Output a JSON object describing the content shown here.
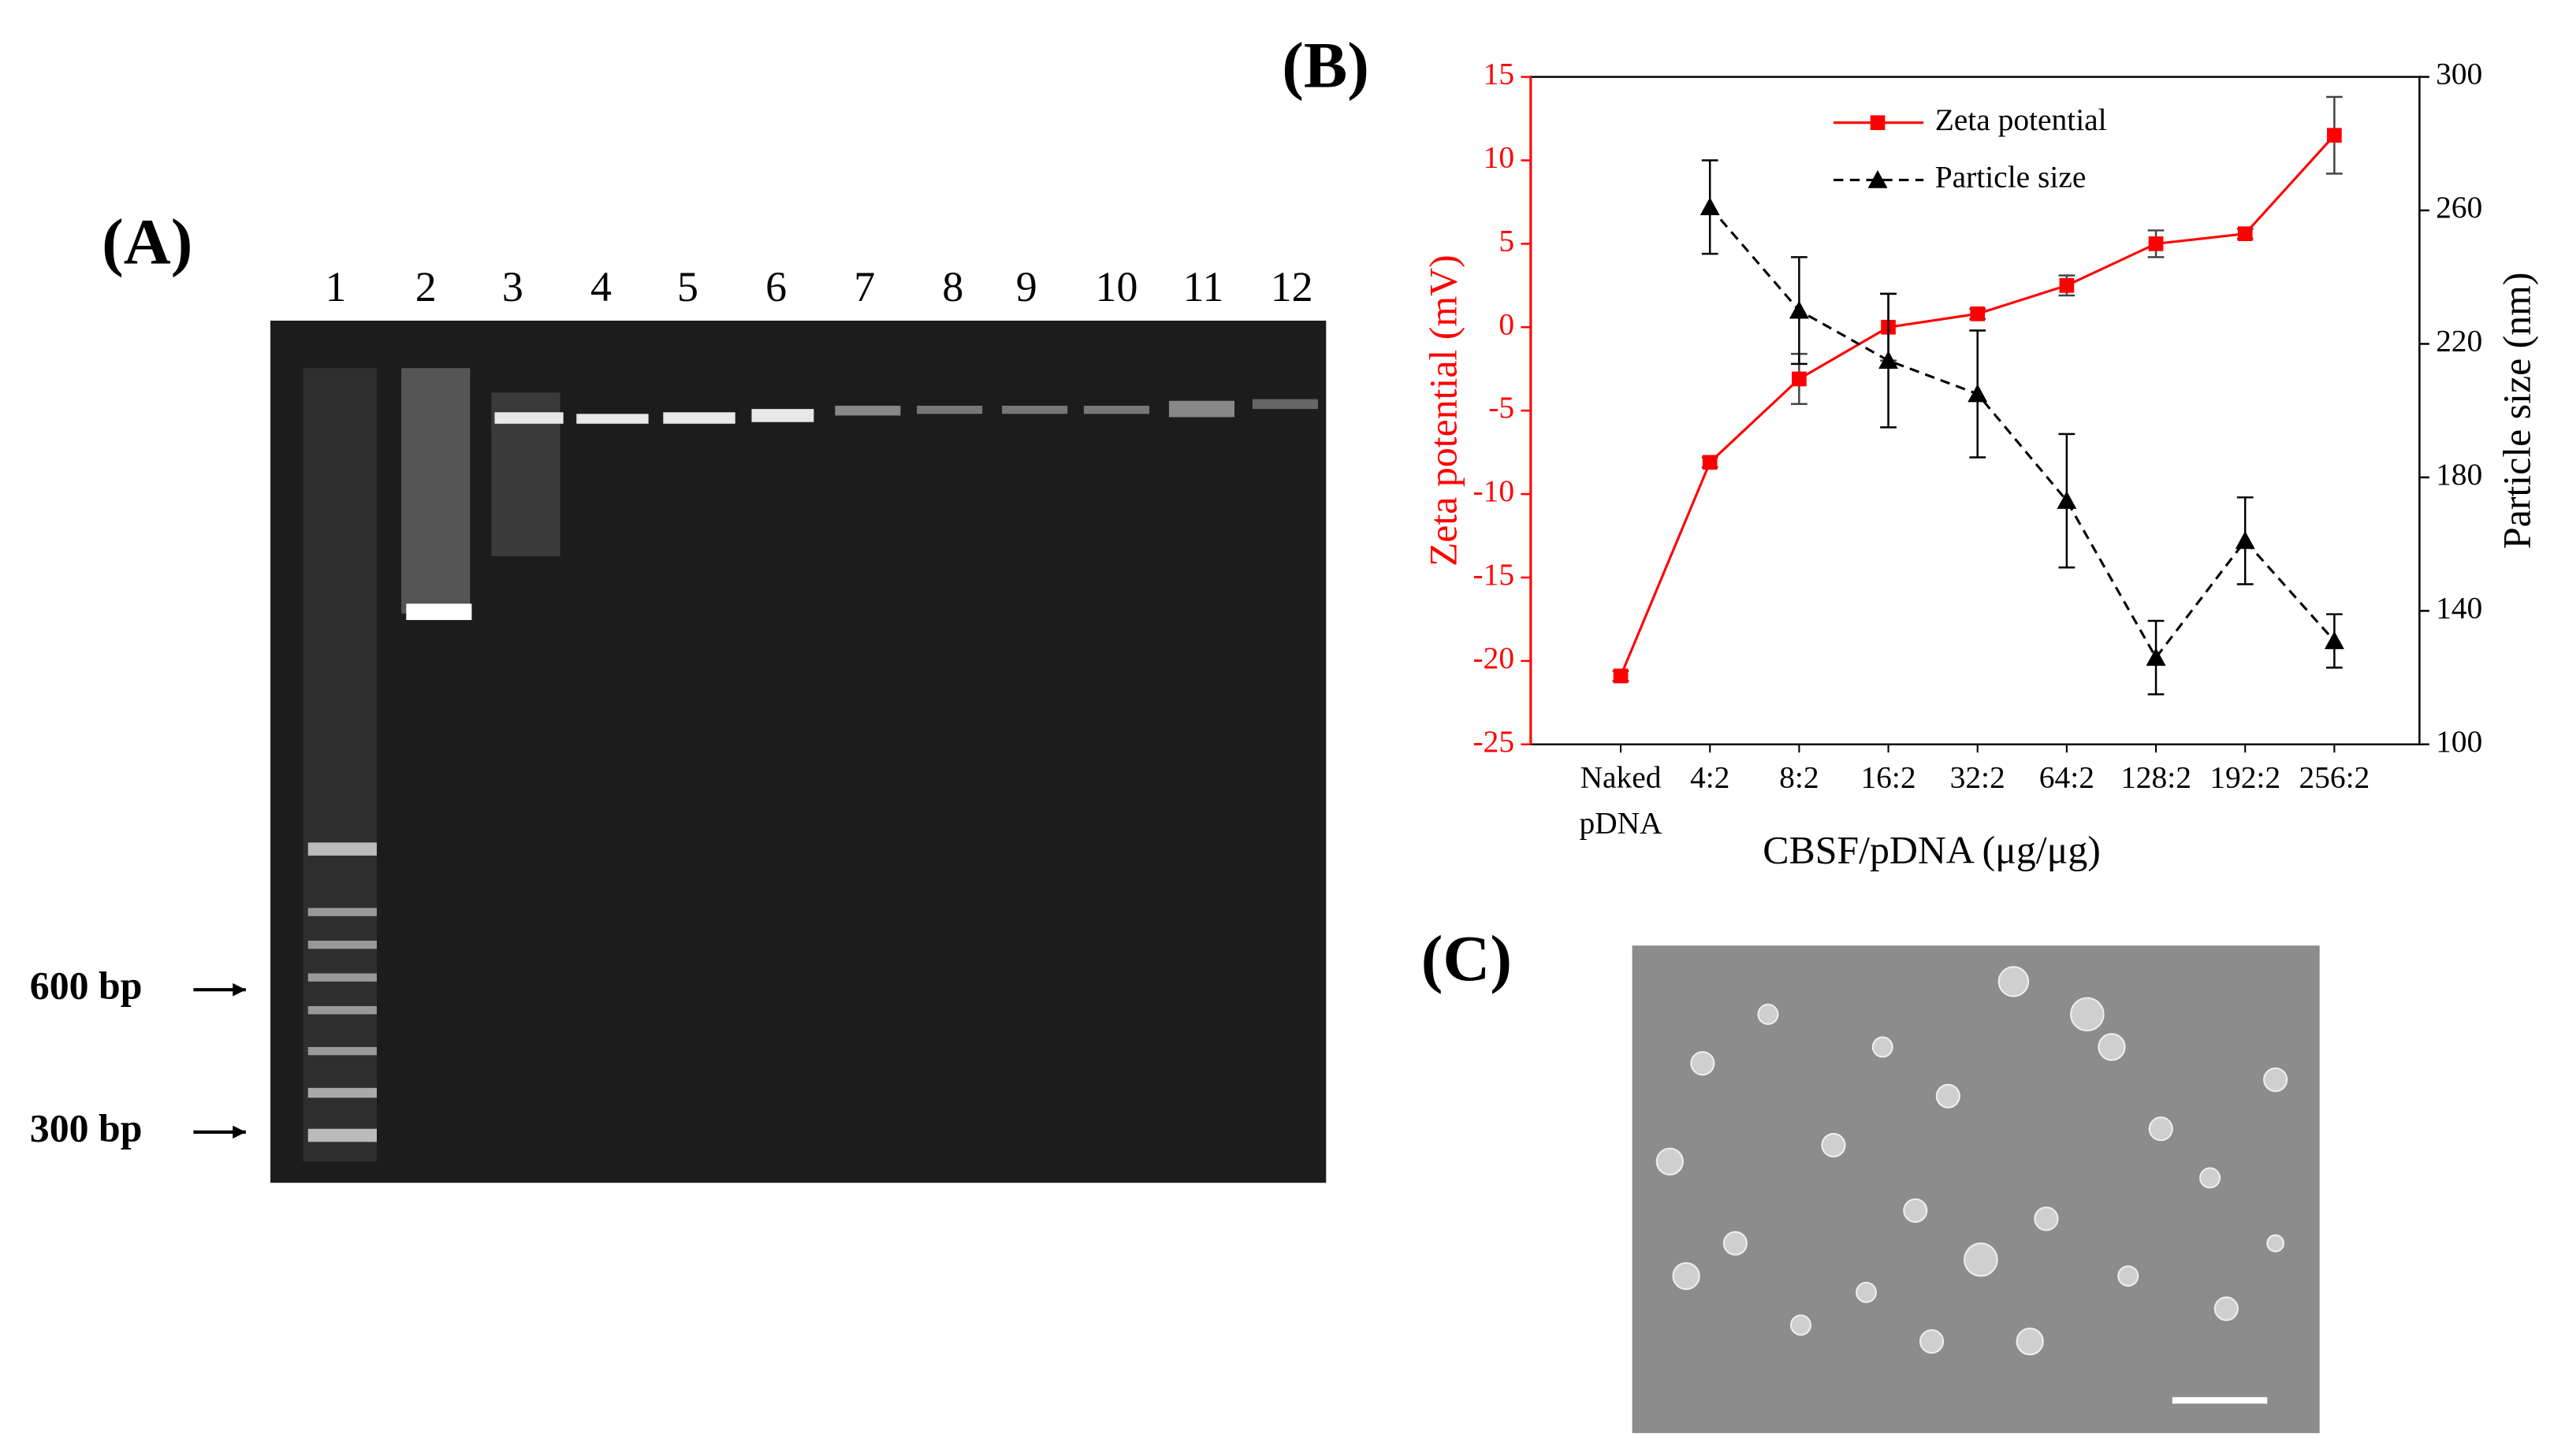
{
  "panels": {
    "A": {
      "label": "(A)",
      "lanes": [
        "1",
        "2",
        "3",
        "4",
        "5",
        "6",
        "7",
        "8",
        "9",
        "10",
        "11",
        "12"
      ],
      "markers": [
        "600 bp",
        "300 bp"
      ]
    },
    "B": {
      "label": "(B)"
    },
    "C": {
      "label": "(C)"
    }
  },
  "chart_data": {
    "type": "line",
    "xlabel": "CBSF/pDNA (μg/μg)",
    "ylabel": "Zeta potential (mV)",
    "y2label": "Particle size (nm)",
    "categories": [
      "Naked pDNA",
      "4:2",
      "8:2",
      "16:2",
      "32:2",
      "64:2",
      "128:2",
      "192:2",
      "256:2"
    ],
    "series": [
      {
        "name": "Zeta potential",
        "color": "#ff0000",
        "marker": "square",
        "dashed": false,
        "values": [
          -20.9,
          -8.1,
          -3.1,
          0.0,
          0.8,
          2.5,
          5.0,
          5.6,
          11.5
        ],
        "errors": [
          0.3,
          0.3,
          1.5,
          2.0,
          0.3,
          0.6,
          0.8,
          0.3,
          2.3
        ]
      },
      {
        "name": "Particle size",
        "color": "#000000",
        "marker": "triangle",
        "dashed": true,
        "axis": "y2",
        "values": [
          null,
          261,
          230,
          215,
          205,
          173,
          126,
          161,
          131
        ],
        "errors": [
          null,
          14,
          16,
          20,
          19,
          20,
          11,
          13,
          8
        ]
      }
    ],
    "ylim": [
      -25,
      15
    ],
    "yticks": [
      -25,
      -20,
      -15,
      -10,
      -5,
      0,
      5,
      10,
      15
    ],
    "y2lim": [
      100,
      300
    ],
    "y2ticks": [
      100,
      140,
      180,
      220,
      260,
      300
    ],
    "legend": "top"
  }
}
